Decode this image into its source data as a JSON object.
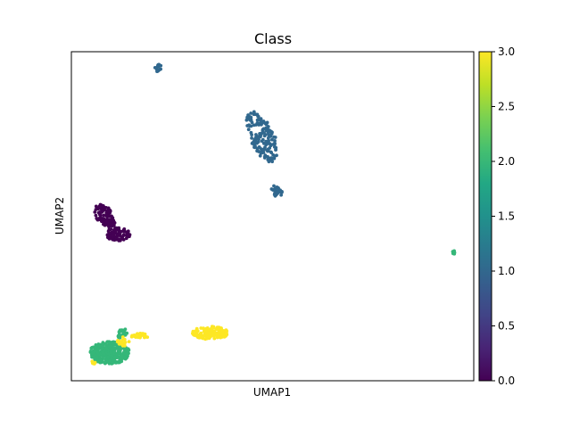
{
  "chart_data": {
    "type": "scatter",
    "title": "Class",
    "xlabel": "UMAP1",
    "ylabel": "UMAP2",
    "xticks": false,
    "yticks": false,
    "xlim": [
      0,
      100
    ],
    "ylim": [
      0,
      100
    ],
    "colormap": "viridis",
    "colorbar": {
      "range": [
        0.0,
        3.0
      ],
      "tick_values": [
        0.0,
        0.5,
        1.0,
        1.5,
        2.0,
        2.5,
        3.0
      ],
      "tick_labels": [
        "0.0",
        "0.5",
        "1.0",
        "1.5",
        "2.0",
        "2.5",
        "3.0"
      ]
    },
    "colors": {
      "class_0": "#440154",
      "class_1": "#31688e",
      "class_2": "#35b779",
      "class_3": "#fde725"
    },
    "clusters": [
      {
        "class": 1,
        "x": 21.5,
        "y": 95.0,
        "rx": 1.2,
        "ry": 0.9,
        "angle": -40,
        "n": 14
      },
      {
        "class": 1,
        "x": 47.5,
        "y": 74.0,
        "rx": 3.0,
        "ry": 8.5,
        "angle": -25,
        "n": 170
      },
      {
        "class": 1,
        "x": 51.0,
        "y": 57.5,
        "rx": 1.3,
        "ry": 2.0,
        "angle": -35,
        "n": 26
      },
      {
        "class": 0,
        "x": 8.0,
        "y": 50.5,
        "rx": 2.0,
        "ry": 3.5,
        "angle": -35,
        "n": 90
      },
      {
        "class": 0,
        "x": 11.5,
        "y": 44.5,
        "rx": 3.2,
        "ry": 2.0,
        "angle": 0,
        "n": 75
      },
      {
        "class": 0,
        "x": 9.5,
        "y": 48.0,
        "rx": 1.5,
        "ry": 1.2,
        "angle": 0,
        "n": 40
      },
      {
        "class": 2,
        "x": 95.0,
        "y": 39.0,
        "rx": 0.6,
        "ry": 0.5,
        "angle": 0,
        "n": 6
      },
      {
        "class": 2,
        "x": 9.5,
        "y": 8.5,
        "rx": 5.0,
        "ry": 3.4,
        "angle": 0,
        "n": 320
      },
      {
        "class": 2,
        "x": 12.5,
        "y": 14.5,
        "rx": 1.3,
        "ry": 1.6,
        "angle": 0,
        "n": 30
      },
      {
        "class": 3,
        "x": 34.5,
        "y": 14.5,
        "rx": 4.5,
        "ry": 2.0,
        "angle": 0,
        "n": 140
      },
      {
        "class": 3,
        "x": 17.0,
        "y": 13.5,
        "rx": 2.2,
        "ry": 0.9,
        "angle": 0,
        "n": 28
      },
      {
        "class": 3,
        "x": 13.0,
        "y": 12.0,
        "rx": 1.8,
        "ry": 1.4,
        "angle": 0,
        "n": 16
      },
      {
        "class": 3,
        "x": 5.5,
        "y": 5.5,
        "rx": 0.6,
        "ry": 0.5,
        "angle": 0,
        "n": 5
      }
    ]
  }
}
